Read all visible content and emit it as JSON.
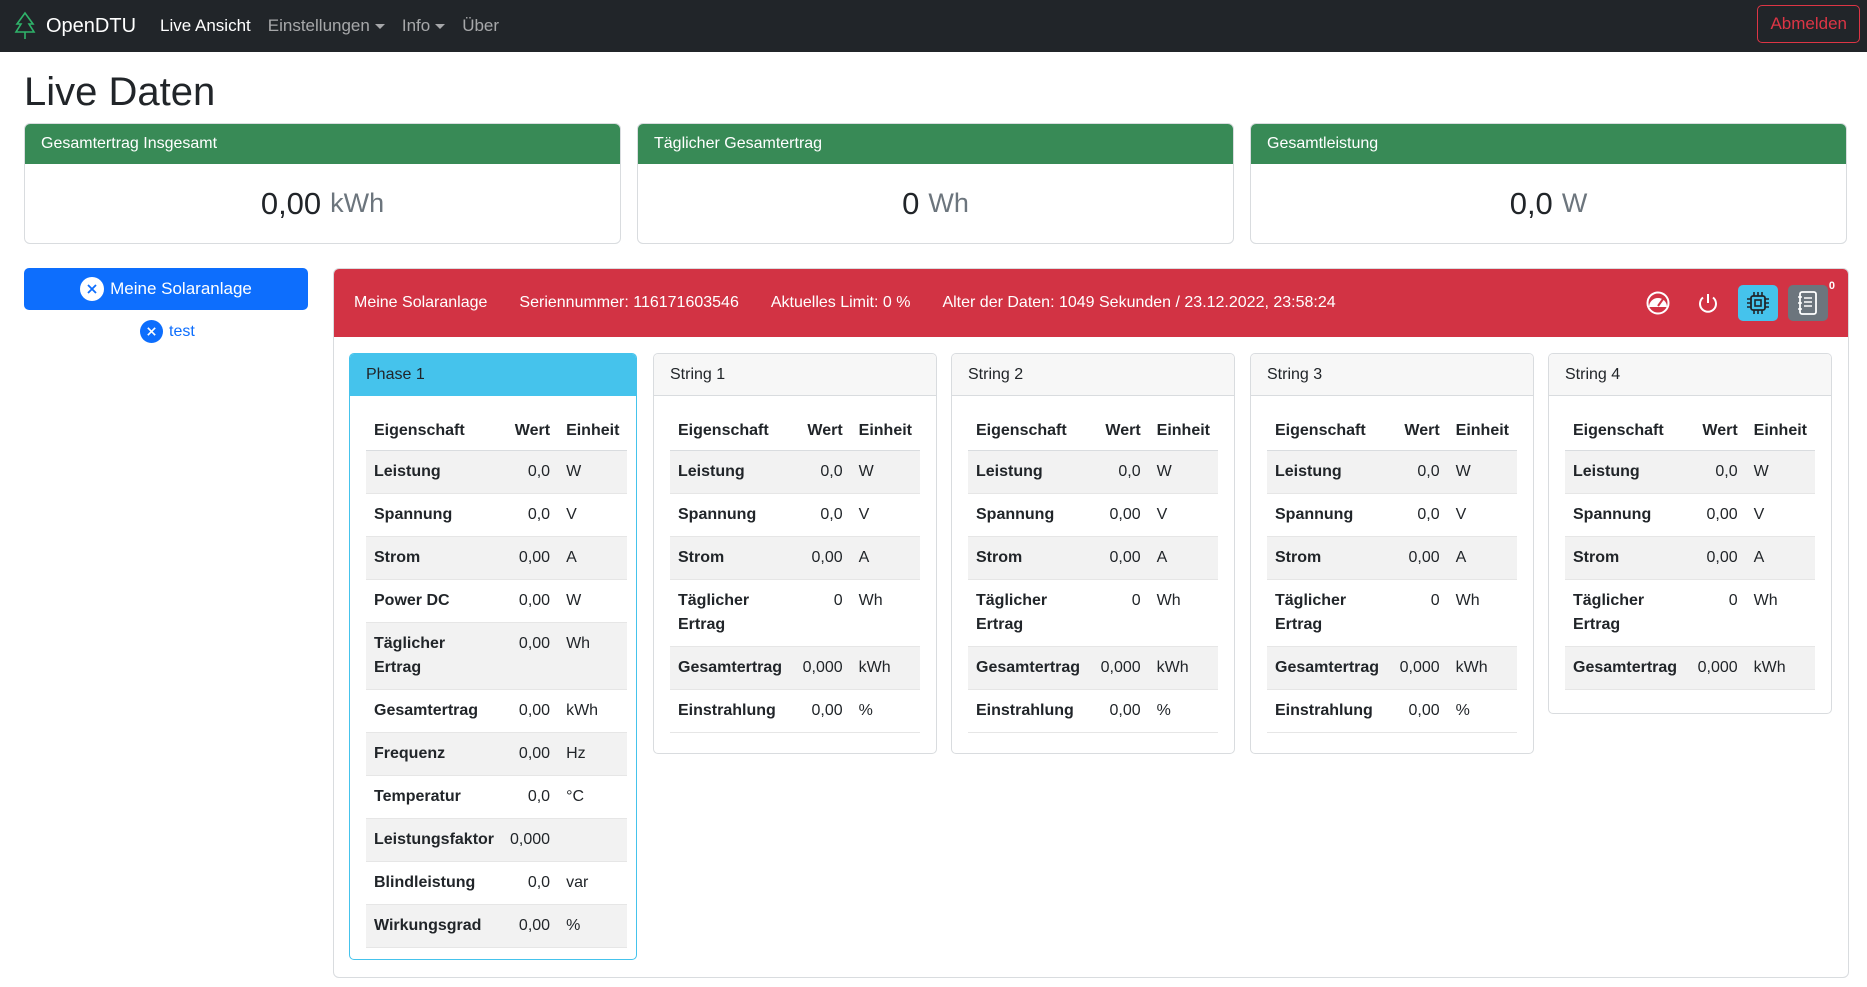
{
  "nav": {
    "brand": "OpenDTU",
    "links": [
      "Live Ansicht",
      "Einstellungen",
      "Info",
      "Über"
    ],
    "logout": "Abmelden"
  },
  "page_title": "Live Daten",
  "stats": [
    {
      "title": "Gesamtertrag Insgesamt",
      "value": "0,00",
      "unit": "kWh"
    },
    {
      "title": "Täglicher Gesamtertrag",
      "value": "0",
      "unit": "Wh"
    },
    {
      "title": "Gesamtleistung",
      "value": "0,0",
      "unit": "W"
    }
  ],
  "tabs": {
    "main": "Meine Solaranlage",
    "test": "test"
  },
  "inverter": {
    "name": "Meine Solaranlage",
    "serial": "Seriennummer: 116171603546",
    "limit": "Aktuelles Limit: 0 %",
    "age": "Alter der Daten: 1049 Sekunden / 23.12.2022, 23:58:24",
    "badge": "0"
  },
  "table_headers": {
    "prop": "Eigenschaft",
    "value": "Wert",
    "unit": "Einheit"
  },
  "phase": {
    "title": "Phase 1",
    "rows": [
      {
        "p": "Leistung",
        "v": "0,0",
        "u": "W"
      },
      {
        "p": "Spannung",
        "v": "0,0",
        "u": "V"
      },
      {
        "p": "Strom",
        "v": "0,00",
        "u": "A"
      },
      {
        "p": "Power DC",
        "v": "0,00",
        "u": "W"
      },
      {
        "p": "Täglicher Ertrag",
        "v": "0,00",
        "u": "Wh"
      },
      {
        "p": "Gesamtertrag",
        "v": "0,00",
        "u": "kWh"
      },
      {
        "p": "Frequenz",
        "v": "0,00",
        "u": "Hz"
      },
      {
        "p": "Temperatur",
        "v": "0,0",
        "u": "°C"
      },
      {
        "p": "Leistungsfaktor",
        "v": "0,000",
        "u": ""
      },
      {
        "p": "Blindleistung",
        "v": "0,0",
        "u": "var"
      },
      {
        "p": "Wirkungsgrad",
        "v": "0,00",
        "u": "%"
      }
    ]
  },
  "strings": [
    {
      "title": "String 1",
      "rows": [
        {
          "p": "Leistung",
          "v": "0,0",
          "u": "W"
        },
        {
          "p": "Spannung",
          "v": "0,0",
          "u": "V"
        },
        {
          "p": "Strom",
          "v": "0,00",
          "u": "A"
        },
        {
          "p": "Täglicher Ertrag",
          "v": "0",
          "u": "Wh"
        },
        {
          "p": "Gesamtertrag",
          "v": "0,000",
          "u": "kWh"
        },
        {
          "p": "Einstrahlung",
          "v": "0,00",
          "u": "%"
        }
      ]
    },
    {
      "title": "String 2",
      "rows": [
        {
          "p": "Leistung",
          "v": "0,0",
          "u": "W"
        },
        {
          "p": "Spannung",
          "v": "0,00",
          "u": "V"
        },
        {
          "p": "Strom",
          "v": "0,00",
          "u": "A"
        },
        {
          "p": "Täglicher Ertrag",
          "v": "0",
          "u": "Wh"
        },
        {
          "p": "Gesamtertrag",
          "v": "0,000",
          "u": "kWh"
        },
        {
          "p": "Einstrahlung",
          "v": "0,00",
          "u": "%"
        }
      ]
    },
    {
      "title": "String 3",
      "rows": [
        {
          "p": "Leistung",
          "v": "0,0",
          "u": "W"
        },
        {
          "p": "Spannung",
          "v": "0,0",
          "u": "V"
        },
        {
          "p": "Strom",
          "v": "0,00",
          "u": "A"
        },
        {
          "p": "Täglicher Ertrag",
          "v": "0",
          "u": "Wh"
        },
        {
          "p": "Gesamtertrag",
          "v": "0,000",
          "u": "kWh"
        },
        {
          "p": "Einstrahlung",
          "v": "0,00",
          "u": "%"
        }
      ]
    },
    {
      "title": "String 4",
      "rows": [
        {
          "p": "Leistung",
          "v": "0,0",
          "u": "W"
        },
        {
          "p": "Spannung",
          "v": "0,00",
          "u": "V"
        },
        {
          "p": "Strom",
          "v": "0,00",
          "u": "A"
        },
        {
          "p": "Täglicher Ertrag",
          "v": "0",
          "u": "Wh"
        },
        {
          "p": "Gesamtertrag",
          "v": "0,000",
          "u": "kWh"
        }
      ]
    }
  ]
}
